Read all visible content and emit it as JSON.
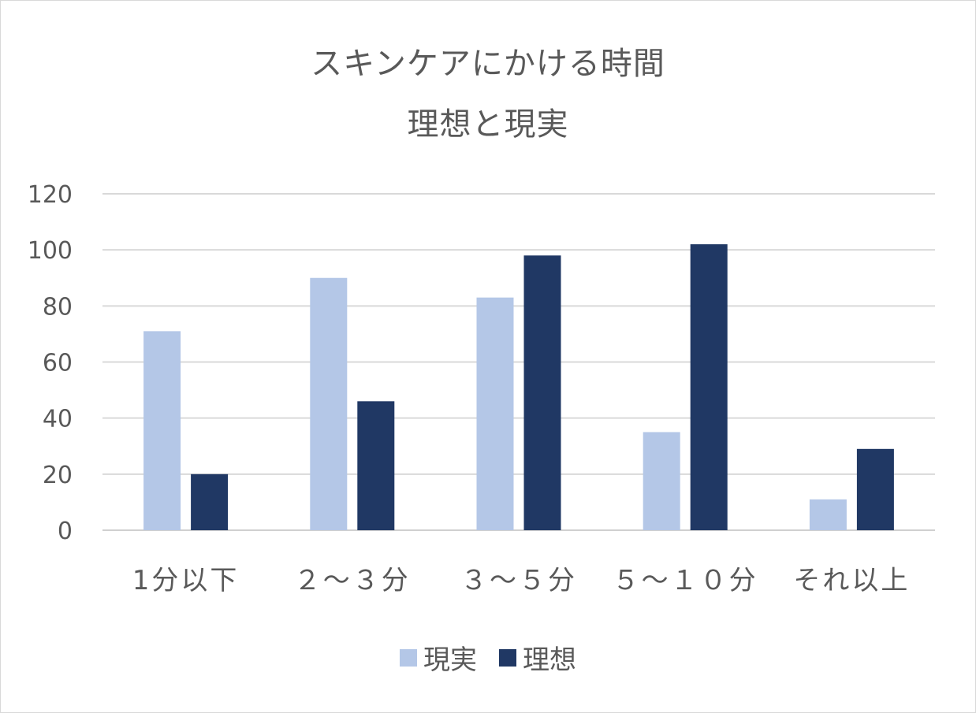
{
  "chart_data": {
    "type": "bar",
    "title": "スキンケアにかける時間",
    "subtitle": "理想と現実",
    "categories": [
      "1分以下",
      "２～３分",
      "３～５分",
      "５～１０分",
      "それ以上"
    ],
    "series": [
      {
        "name": "現実",
        "color": "#b4c7e7",
        "values": [
          71,
          90,
          83,
          35,
          11
        ]
      },
      {
        "name": "理想",
        "color": "#203864",
        "values": [
          20,
          46,
          98,
          102,
          29
        ]
      }
    ],
    "ylim": [
      0,
      120
    ],
    "yticks": [
      "0",
      "20",
      "40",
      "60",
      "80",
      "100",
      "120"
    ],
    "grid": true,
    "legend_position": "bottom"
  }
}
